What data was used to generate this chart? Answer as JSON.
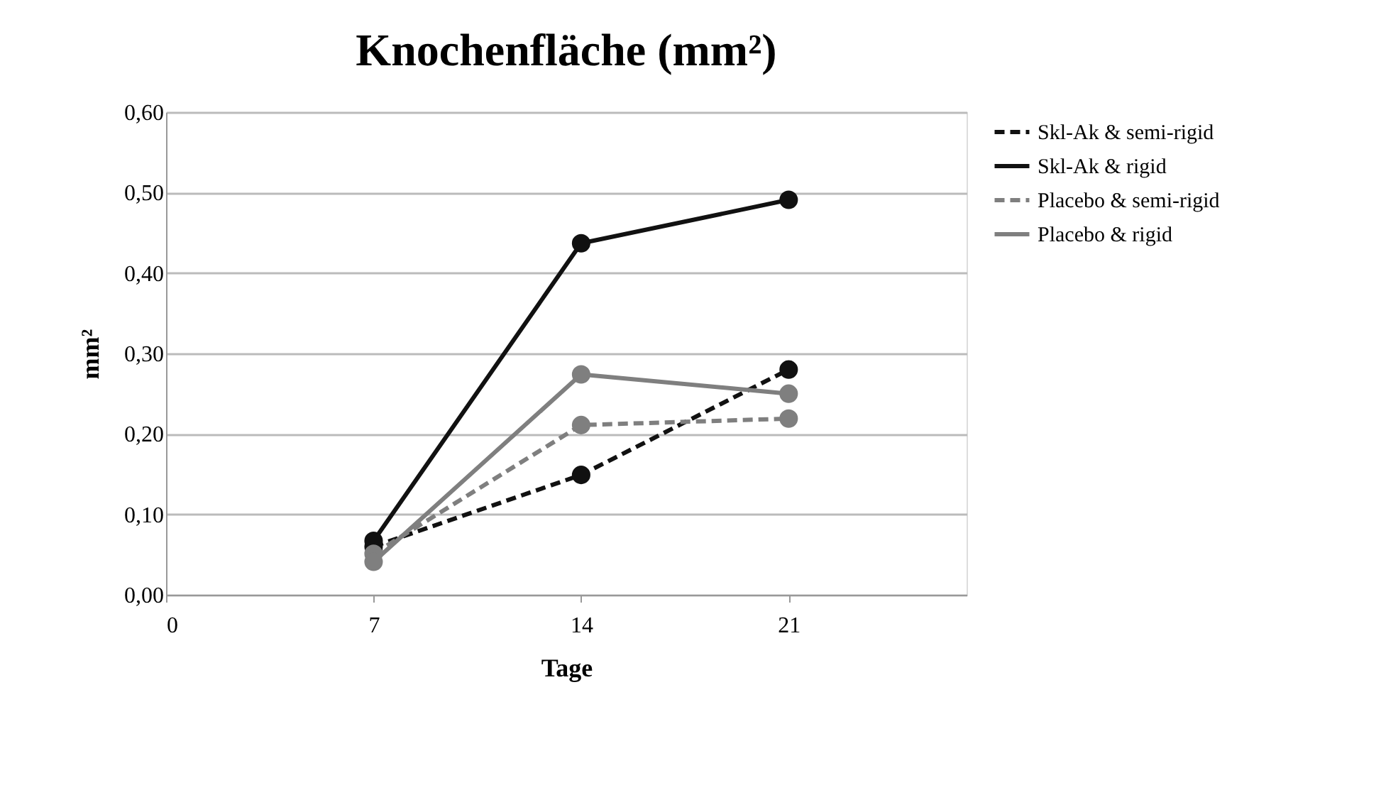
{
  "chart_data": {
    "type": "line",
    "title": "Knochenfläche (mm²)",
    "xlabel": "Tage",
    "ylabel": "mm²",
    "x": [
      7,
      14,
      21
    ],
    "series": [
      {
        "name": "Skl-Ak & semi-rigid",
        "color": "#111111",
        "line_style": "dashed",
        "values": [
          0.06,
          0.149,
          0.28
        ]
      },
      {
        "name": "Skl-Ak & rigid",
        "color": "#111111",
        "line_style": "solid",
        "values": [
          0.067,
          0.437,
          0.491
        ]
      },
      {
        "name": "Placebo & semi-rigid",
        "color": "#7f7f7f",
        "line_style": "dashed",
        "values": [
          0.051,
          0.211,
          0.219
        ]
      },
      {
        "name": "Placebo & rigid",
        "color": "#7f7f7f",
        "line_style": "solid",
        "values": [
          0.041,
          0.274,
          0.25
        ]
      }
    ],
    "xlim": [
      0,
      27
    ],
    "xticks": [
      0,
      7,
      14,
      21
    ],
    "ylim": [
      0,
      0.6
    ],
    "yticks": [
      {
        "value": 0,
        "label": "0,00"
      },
      {
        "value": 0.1,
        "label": "0,10"
      },
      {
        "value": 0.2,
        "label": "0,20"
      },
      {
        "value": 0.3,
        "label": "0,30"
      },
      {
        "value": 0.4,
        "label": "0,40"
      },
      {
        "value": 0.5,
        "label": "0,50"
      },
      {
        "value": 0.6,
        "label": "0,60"
      }
    ],
    "grid": "y",
    "legend": "right",
    "marker": "circle"
  }
}
